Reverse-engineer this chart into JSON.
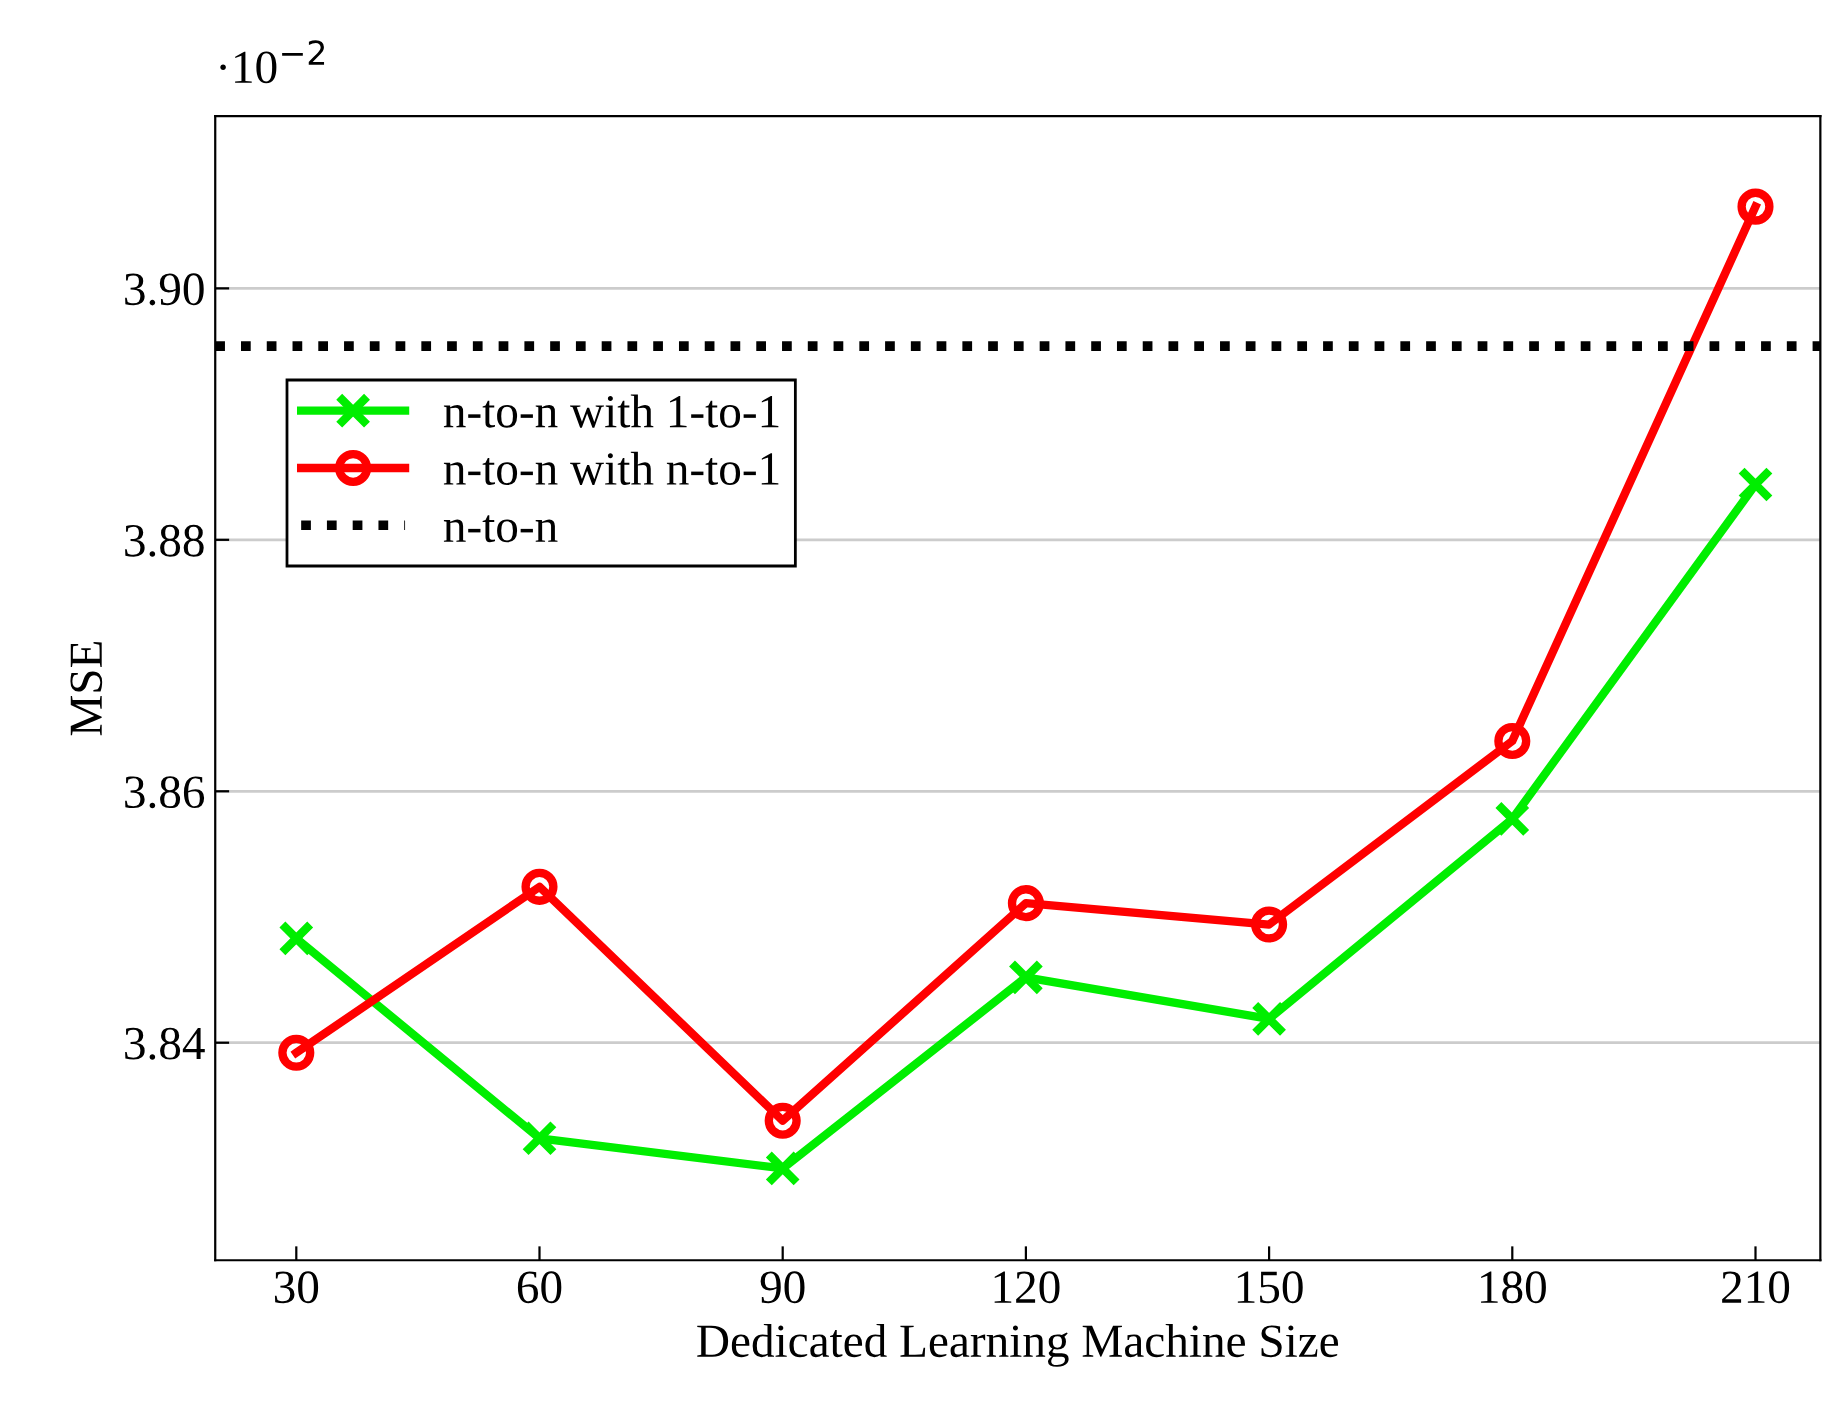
{
  "chart_data": {
    "type": "line",
    "xlabel": "Dedicated Learning Machine Size",
    "ylabel": "MSE",
    "x": [
      30,
      60,
      90,
      120,
      150,
      180,
      210
    ],
    "series": [
      {
        "name": "n-to-n with 1-to-1",
        "color": "#00ee00",
        "marker": "cross",
        "values": [
          3.8483,
          3.8324,
          3.83,
          3.8452,
          3.8419,
          3.8578,
          3.8844
        ]
      },
      {
        "name": "n-to-n with n-to-1",
        "color": "#ff0000",
        "marker": "circle",
        "values": [
          3.8392,
          3.8524,
          3.8338,
          3.8511,
          3.8494,
          3.864,
          3.9065
        ]
      }
    ],
    "ref_lines": [
      {
        "axis": "y",
        "value": 3.8954,
        "label": "n-to-n",
        "color": "#000000",
        "line_style": "dotted"
      }
    ],
    "xlim": [
      20,
      218
    ],
    "xticks": [
      30,
      60,
      90,
      120,
      150,
      180,
      210
    ],
    "ylim": [
      3.8227,
      3.9137
    ],
    "yticks": [
      {
        "value": 3.84,
        "label": "3.84"
      },
      {
        "value": 3.86,
        "label": "3.86"
      },
      {
        "value": 3.88,
        "label": "3.88"
      },
      {
        "value": 3.9,
        "label": "3.90"
      }
    ],
    "annotations": [
      "·10$^{−2}$"
    ],
    "grid": "y",
    "legend": "top left",
    "line_style": "solid"
  }
}
